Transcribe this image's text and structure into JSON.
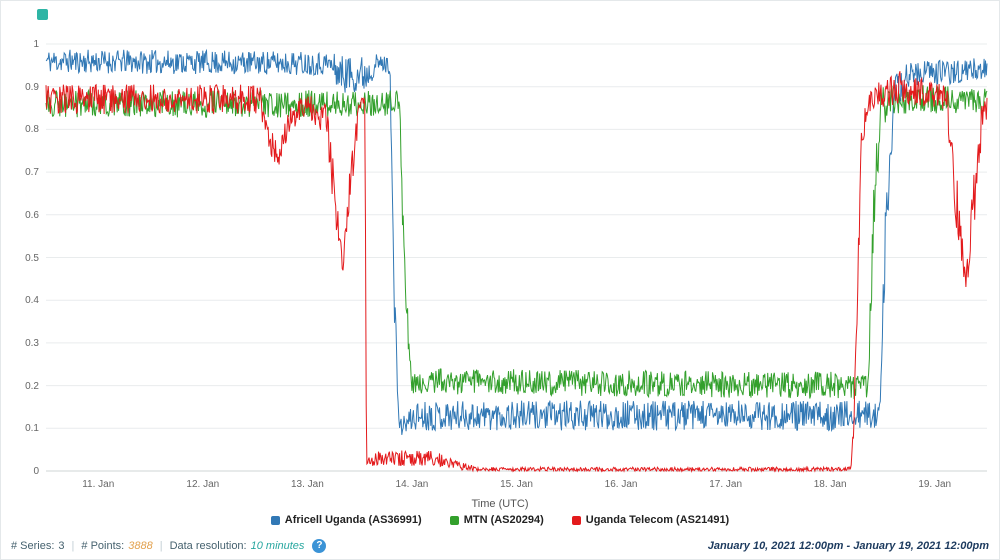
{
  "chart_data": {
    "type": "line",
    "title": "",
    "xlabel": "Time (UTC)",
    "ylabel": "",
    "x_min": 10.5,
    "x_max": 19.5,
    "y_min": 0,
    "y_max": 1,
    "grid": "horizontal",
    "legend_position": "bottom",
    "resolution_minutes": 10,
    "x_ticks": [
      {
        "x": 11,
        "label": "11. Jan"
      },
      {
        "x": 12,
        "label": "12. Jan"
      },
      {
        "x": 13,
        "label": "13. Jan"
      },
      {
        "x": 14,
        "label": "14. Jan"
      },
      {
        "x": 15,
        "label": "15. Jan"
      },
      {
        "x": 16,
        "label": "16. Jan"
      },
      {
        "x": 17,
        "label": "17. Jan"
      },
      {
        "x": 18,
        "label": "18. Jan"
      },
      {
        "x": 19,
        "label": "19. Jan"
      }
    ],
    "y_ticks": [
      {
        "v": 0,
        "label": "0"
      },
      {
        "v": 0.1,
        "label": "0.1"
      },
      {
        "v": 0.2,
        "label": "0.2"
      },
      {
        "v": 0.3,
        "label": "0.3"
      },
      {
        "v": 0.4,
        "label": "0.4"
      },
      {
        "v": 0.5,
        "label": "0.5"
      },
      {
        "v": 0.6,
        "label": "0.6"
      },
      {
        "v": 0.7,
        "label": "0.7"
      },
      {
        "v": 0.8,
        "label": "0.8"
      },
      {
        "v": 0.9,
        "label": "0.9"
      },
      {
        "v": 1,
        "label": "1"
      }
    ],
    "series": [
      {
        "name": "Africell Uganda (AS36991)",
        "color": "#3178b5",
        "keypoints": [
          [
            10.5,
            0.96,
            0.028
          ],
          [
            13.2,
            0.955,
            0.028
          ],
          [
            13.32,
            0.93,
            0.045
          ],
          [
            13.56,
            0.93,
            0.045
          ],
          [
            13.66,
            0.955,
            0.022
          ],
          [
            13.79,
            0.95,
            0.02
          ],
          [
            13.83,
            0.4,
            0.06
          ],
          [
            13.88,
            0.1,
            0.02
          ],
          [
            14.05,
            0.13,
            0.035
          ],
          [
            18.4,
            0.13,
            0.035
          ],
          [
            18.47,
            0.13,
            0.025
          ],
          [
            18.52,
            0.5,
            0.08
          ],
          [
            18.62,
            0.88,
            0.05
          ],
          [
            18.75,
            0.93,
            0.03
          ],
          [
            19.5,
            0.94,
            0.03
          ]
        ]
      },
      {
        "name": "MTN (AS20294)",
        "color": "#33a02c",
        "keypoints": [
          [
            10.5,
            0.86,
            0.032
          ],
          [
            13.78,
            0.86,
            0.032
          ],
          [
            13.88,
            0.87,
            0.025
          ],
          [
            13.93,
            0.45,
            0.06
          ],
          [
            13.99,
            0.21,
            0.03
          ],
          [
            18.36,
            0.2,
            0.032
          ],
          [
            18.41,
            0.55,
            0.09
          ],
          [
            18.48,
            0.85,
            0.05
          ],
          [
            18.6,
            0.87,
            0.035
          ],
          [
            19.5,
            0.87,
            0.03
          ]
        ]
      },
      {
        "name": "Uganda Telecom (AS21491)",
        "color": "#e31a1c",
        "keypoints": [
          [
            10.5,
            0.87,
            0.035
          ],
          [
            12.55,
            0.87,
            0.035
          ],
          [
            12.63,
            0.78,
            0.035
          ],
          [
            12.72,
            0.735,
            0.025
          ],
          [
            12.82,
            0.82,
            0.03
          ],
          [
            13.0,
            0.86,
            0.03
          ],
          [
            13.18,
            0.82,
            0.05
          ],
          [
            13.28,
            0.6,
            0.06
          ],
          [
            13.34,
            0.49,
            0.025
          ],
          [
            13.42,
            0.7,
            0.05
          ],
          [
            13.5,
            0.86,
            0.025
          ],
          [
            13.55,
            0.87,
            0.01
          ],
          [
            13.565,
            0.02,
            0.012
          ],
          [
            13.7,
            0.03,
            0.018
          ],
          [
            14.2,
            0.03,
            0.018
          ],
          [
            14.45,
            0.012,
            0.01
          ],
          [
            14.65,
            0.004,
            0.005
          ],
          [
            18.2,
            0.004,
            0.005
          ],
          [
            18.24,
            0.2,
            0.06
          ],
          [
            18.3,
            0.78,
            0.06
          ],
          [
            18.38,
            0.87,
            0.03
          ],
          [
            18.65,
            0.9,
            0.04
          ],
          [
            19.0,
            0.88,
            0.03
          ],
          [
            19.12,
            0.86,
            0.04
          ],
          [
            19.22,
            0.6,
            0.07
          ],
          [
            19.3,
            0.44,
            0.03
          ],
          [
            19.38,
            0.65,
            0.08
          ],
          [
            19.45,
            0.82,
            0.04
          ],
          [
            19.5,
            0.85,
            0.03
          ]
        ]
      }
    ]
  },
  "footer": {
    "series_label": "# Series:",
    "series_value": "3",
    "points_label": "# Points:",
    "points_value": "3888",
    "resolution_label": "Data resolution:",
    "resolution_value": "10 minutes",
    "separator": "|",
    "help": "?",
    "date_range": "January 10, 2021 12:00pm - January 19, 2021 12:00pm"
  }
}
